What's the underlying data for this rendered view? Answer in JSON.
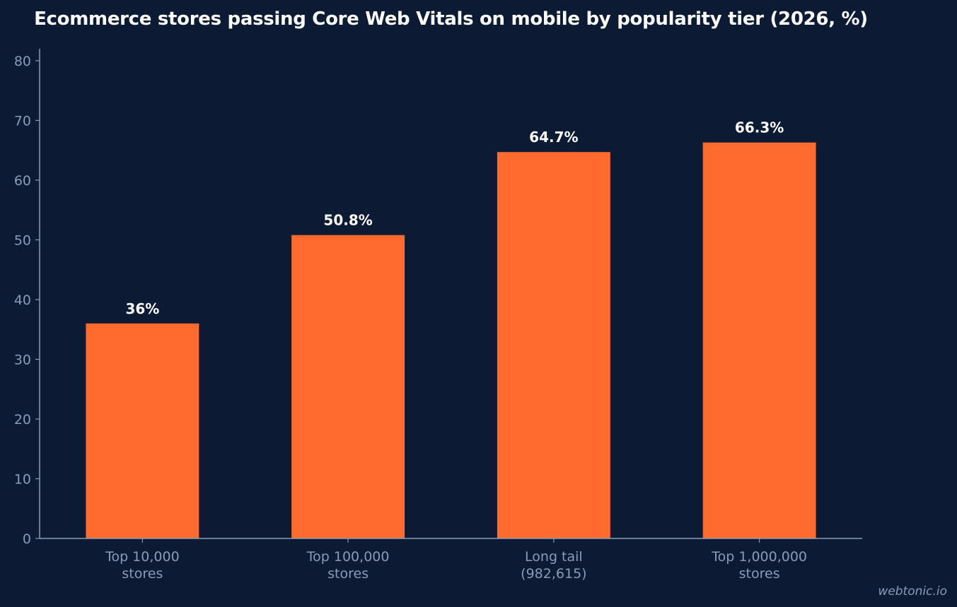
{
  "chart_data": {
    "type": "bar",
    "title": "Ecommerce stores passing Core Web Vitals on mobile by popularity tier (2026, %)",
    "categories": [
      [
        "Top 10,000",
        "stores"
      ],
      [
        "Top 100,000",
        "stores"
      ],
      [
        "Long tail",
        "(982,615)"
      ],
      [
        "Top 1,000,000",
        "stores"
      ]
    ],
    "values": [
      36,
      50.8,
      64.7,
      66.3
    ],
    "value_labels": [
      "36%",
      "50.8%",
      "64.7%",
      "66.3%"
    ],
    "ylim": [
      0,
      82
    ],
    "yticks": [
      0,
      10,
      20,
      30,
      40,
      50,
      60,
      70,
      80
    ],
    "xlabel": "",
    "ylabel": "",
    "grid": false,
    "colors": {
      "background": "#0c1b33",
      "bar": "#ff6b2e",
      "axis": "#8a9bb8",
      "text": "#ffffff"
    }
  },
  "watermark": "webtonic.io"
}
